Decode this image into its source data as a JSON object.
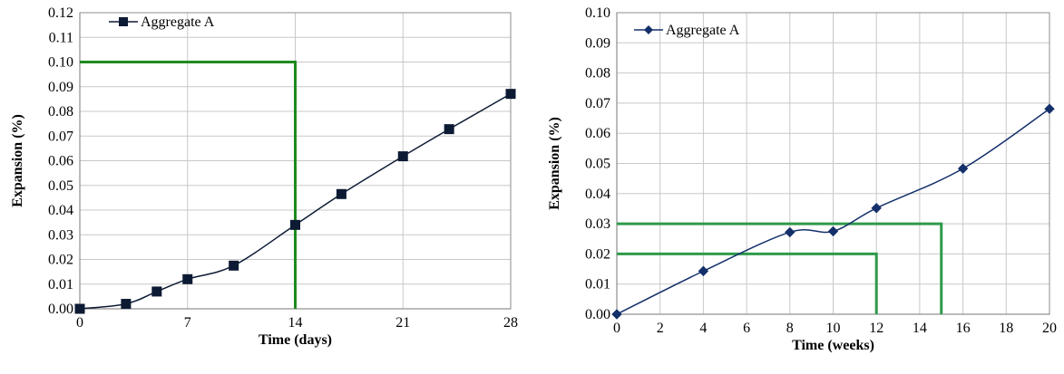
{
  "chart_data": [
    {
      "type": "line",
      "xlabel": "Time (days)",
      "ylabel": "Expansion (%)",
      "xlim": [
        0,
        28
      ],
      "ylim": [
        0,
        0.12
      ],
      "x_ticks": [
        0,
        7,
        14,
        21,
        28
      ],
      "x_tick_labels": [
        "0",
        "7",
        "14",
        "21",
        "28"
      ],
      "y_ticks": [
        0,
        0.01,
        0.02,
        0.03,
        0.04,
        0.05,
        0.06,
        0.07,
        0.08,
        0.09,
        0.1,
        0.11,
        0.12
      ],
      "y_tick_labels": [
        "0.00",
        "0.01",
        "0.02",
        "0.03",
        "0.04",
        "0.05",
        "0.06",
        "0.07",
        "0.08",
        "0.09",
        "0.10",
        "0.11",
        "0.12"
      ],
      "grid": true,
      "legend_position": "top-left",
      "series": [
        {
          "name": "Aggregate A",
          "marker": "square",
          "color": "#0d1a33",
          "x": [
            0,
            3,
            5,
            7,
            10,
            14,
            17,
            21,
            24,
            28
          ],
          "y": [
            0.0,
            0.002,
            0.007,
            0.012,
            0.0175,
            0.034,
            0.0465,
            0.0618,
            0.0728,
            0.0871
          ]
        }
      ],
      "limit_lines": [
        {
          "color": "#1e8a1e",
          "points": [
            [
              0,
              0.1
            ],
            [
              14,
              0.1
            ],
            [
              14,
              0
            ]
          ]
        }
      ]
    },
    {
      "type": "line",
      "xlabel": "Time (weeks)",
      "ylabel": "Expansion (%)",
      "xlim": [
        0,
        20
      ],
      "ylim": [
        0,
        0.1
      ],
      "x_ticks": [
        0,
        2,
        4,
        6,
        8,
        10,
        12,
        14,
        16,
        18,
        20
      ],
      "x_tick_labels": [
        "0",
        "2",
        "4",
        "6",
        "8",
        "10",
        "12",
        "14",
        "16",
        "18",
        "20"
      ],
      "y_ticks": [
        0,
        0.01,
        0.02,
        0.03,
        0.04,
        0.05,
        0.06,
        0.07,
        0.08,
        0.09,
        0.1
      ],
      "y_tick_labels": [
        "0.00",
        "0.01",
        "0.02",
        "0.03",
        "0.04",
        "0.05",
        "0.06",
        "0.07",
        "0.08",
        "0.09",
        "0.10"
      ],
      "grid": true,
      "legend_position": "top-left",
      "series": [
        {
          "name": "Aggregate A",
          "marker": "diamond",
          "color": "#14306b",
          "x": [
            0,
            4,
            8,
            10,
            12,
            16,
            20
          ],
          "y": [
            0.0,
            0.0143,
            0.0272,
            0.0275,
            0.0352,
            0.0483,
            0.0681
          ]
        }
      ],
      "limit_lines": [
        {
          "color": "#2e9a4a",
          "points": [
            [
              0,
              0.03
            ],
            [
              15,
              0.03
            ],
            [
              15,
              0
            ]
          ]
        },
        {
          "color": "#2e9a4a",
          "points": [
            [
              0,
              0.02
            ],
            [
              12,
              0.02
            ],
            [
              12,
              0
            ]
          ]
        }
      ]
    }
  ]
}
